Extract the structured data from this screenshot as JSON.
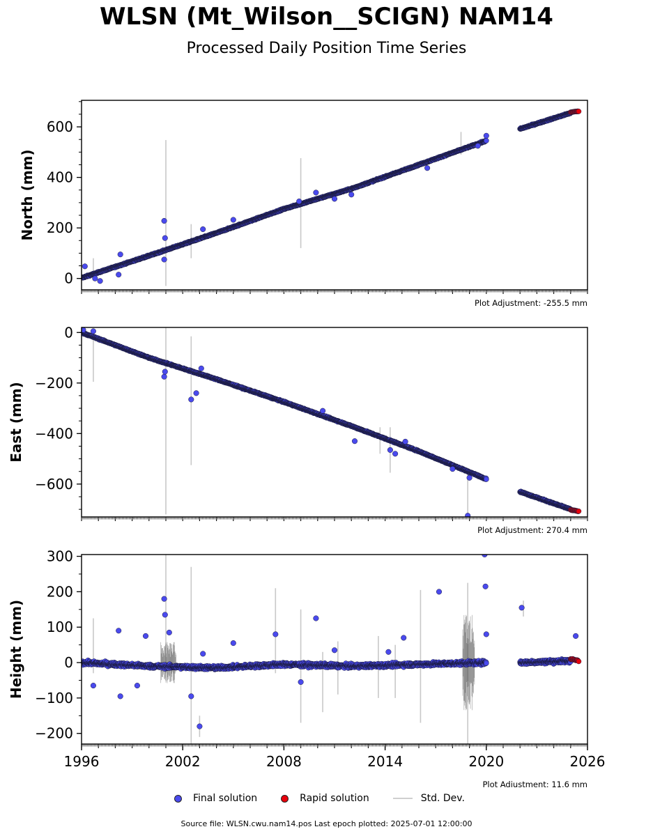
{
  "header": {
    "title": "WLSN (Mt_Wilson__SCIGN) NAM14",
    "subtitle": "Processed Daily Position Time Series"
  },
  "footer": {
    "source": "Source file: WLSN.cwu.nam14.pos  Last epoch plotted: 2025-07-01 12:00:00"
  },
  "legend": {
    "final_label": "Final solution",
    "rapid_label": "Rapid solution",
    "std_label": "Std. Dev."
  },
  "colors": {
    "final": "#4a4aee",
    "rapid": "#e8000b",
    "std": "#c8c8c8",
    "edge": "#1a1a3a"
  },
  "chart_data": [
    {
      "type": "scatter",
      "ylabel": "North (mm)",
      "adjustment": "Plot Adjustment: -255.5 mm",
      "xlim": [
        1996,
        2026
      ],
      "ylim": [
        -45,
        705
      ],
      "yticks": [
        0,
        200,
        400,
        600
      ],
      "ytick_labels": [
        "0",
        "200",
        "400",
        "600"
      ],
      "series": [
        {
          "name": "Final solution",
          "x": [
            1996.0,
            2000.0,
            2004.0,
            2008.0,
            2012.0,
            2016.0,
            2020.0
          ],
          "y": [
            2,
            90,
            180,
            275,
            355,
            450,
            545
          ]
        },
        {
          "name": "Final solution",
          "x": [
            2022.0,
            2025.0
          ],
          "y": [
            592,
            655
          ]
        },
        {
          "name": "Rapid solution",
          "x": [
            2025.0,
            2025.5
          ],
          "y": [
            658,
            662
          ]
        }
      ],
      "outliers": {
        "x": [
          1996.2,
          1996.8,
          1997.1,
          1998.3,
          1998.2,
          2000.9,
          2000.9,
          2000.95,
          2003.2,
          2005.0,
          2008.9,
          2009.9,
          2011.0,
          2012.0,
          2016.5,
          2019.5,
          2020.0
        ],
        "y": [
          48,
          0,
          -10,
          95,
          15,
          228,
          75,
          160,
          195,
          232,
          305,
          340,
          315,
          332,
          437,
          525,
          565
        ]
      },
      "errorbars": [
        {
          "x": 1996.7,
          "low": -10,
          "high": 80
        },
        {
          "x": 2001.0,
          "low": -30,
          "high": 548
        },
        {
          "x": 2002.5,
          "low": 80,
          "high": 215
        },
        {
          "x": 2009.0,
          "low": 120,
          "high": 476
        },
        {
          "x": 2018.5,
          "low": 490,
          "high": 580
        }
      ]
    },
    {
      "type": "scatter",
      "ylabel": "East (mm)",
      "adjustment": "Plot Adjustment: 270.4 mm",
      "xlim": [
        1996,
        2026
      ],
      "ylim": [
        -730,
        20
      ],
      "yticks": [
        0,
        -200,
        -400,
        -600
      ],
      "ytick_labels": [
        "0",
        "−200",
        "−400",
        "−600"
      ],
      "series": [
        {
          "name": "Final solution",
          "x": [
            1996.0,
            2000.0,
            2004.0,
            2008.0,
            2012.0,
            2016.0,
            2020.0
          ],
          "y": [
            0,
            -100,
            -185,
            -275,
            -370,
            -470,
            -580
          ]
        },
        {
          "name": "Final solution",
          "x": [
            2022.0,
            2025.0
          ],
          "y": [
            -630,
            -700
          ]
        },
        {
          "name": "Rapid solution",
          "x": [
            2025.0,
            2025.5
          ],
          "y": [
            -702,
            -708
          ]
        }
      ],
      "outliers": {
        "x": [
          1996.1,
          1996.7,
          2000.9,
          2000.95,
          2002.5,
          2002.8,
          2003.1,
          2010.3,
          2012.2,
          2014.3,
          2014.6,
          2015.2,
          2018.0,
          2019.0,
          2018.9
        ],
        "y": [
          10,
          5,
          -175,
          -155,
          -265,
          -240,
          -142,
          -310,
          -430,
          -465,
          -480,
          -432,
          -540,
          -575,
          -725
        ]
      },
      "errorbars": [
        {
          "x": 1996.7,
          "low": -195,
          "high": 10
        },
        {
          "x": 2001.0,
          "low": -720,
          "high": 20
        },
        {
          "x": 2002.5,
          "low": -525,
          "high": -15
        },
        {
          "x": 2013.7,
          "low": -480,
          "high": -375
        },
        {
          "x": 2014.3,
          "low": -555,
          "high": -375
        },
        {
          "x": 2018.9,
          "low": -735,
          "high": -560
        }
      ]
    },
    {
      "type": "scatter",
      "ylabel": "Height (mm)",
      "adjustment": "Plot Adjustment: 11.6 mm",
      "xlim": [
        1996,
        2026
      ],
      "ylim": [
        -230,
        305
      ],
      "yticks": [
        300,
        200,
        100,
        0,
        -100,
        -200
      ],
      "ytick_labels": [
        "300",
        "200",
        "100",
        "0",
        "−100",
        "−200"
      ],
      "xticks": [
        1996,
        2002,
        2008,
        2014,
        2020,
        2026
      ],
      "xtick_labels": [
        "1996",
        "2002",
        "2008",
        "2014",
        "2020",
        "2026"
      ],
      "series": [
        {
          "name": "Final solution",
          "x": [
            1996.0,
            2000.0,
            2004.0,
            2008.0,
            2012.0,
            2016.0,
            2020.0
          ],
          "y": [
            0,
            -10,
            -15,
            -5,
            -10,
            -5,
            0
          ]
        },
        {
          "name": "Final solution",
          "x": [
            2022.0,
            2025.0
          ],
          "y": [
            0,
            5
          ]
        },
        {
          "name": "Rapid solution",
          "x": [
            2025.0,
            2025.5
          ],
          "y": [
            10,
            5
          ]
        }
      ],
      "outliers": {
        "x": [
          1996.7,
          1998.2,
          1998.3,
          1999.3,
          1999.8,
          2000.9,
          2000.95,
          2001.2,
          2002.5,
          2003.0,
          2009.0,
          2009.9,
          2011.0,
          2017.2,
          2019.9,
          2019.95,
          2020.0,
          2022.1,
          2025.3,
          2003.2,
          2005.0,
          2007.5,
          2014.2,
          2015.1
        ],
        "y": [
          -65,
          90,
          -95,
          -65,
          75,
          180,
          135,
          85,
          -95,
          -180,
          -55,
          125,
          35,
          200,
          305,
          215,
          80,
          155,
          75,
          25,
          55,
          80,
          30,
          70
        ]
      },
      "errorbars": [
        {
          "x": 1996.7,
          "low": -30,
          "high": 125
        },
        {
          "x": 2001.0,
          "low": -30,
          "high": 305
        },
        {
          "x": 2002.5,
          "low": -230,
          "high": 270
        },
        {
          "x": 2003.0,
          "low": -210,
          "high": -150
        },
        {
          "x": 2007.5,
          "low": -30,
          "high": 210
        },
        {
          "x": 2009.0,
          "low": -170,
          "high": 150
        },
        {
          "x": 2010.3,
          "low": -140,
          "high": 30
        },
        {
          "x": 2011.2,
          "low": -90,
          "high": 60
        },
        {
          "x": 2013.6,
          "low": -100,
          "high": 75
        },
        {
          "x": 2014.6,
          "low": -100,
          "high": 50
        },
        {
          "x": 2016.1,
          "low": -170,
          "high": 205
        },
        {
          "x": 2018.9,
          "low": -230,
          "high": 225
        },
        {
          "x": 2022.2,
          "low": 130,
          "high": 175
        }
      ]
    }
  ]
}
